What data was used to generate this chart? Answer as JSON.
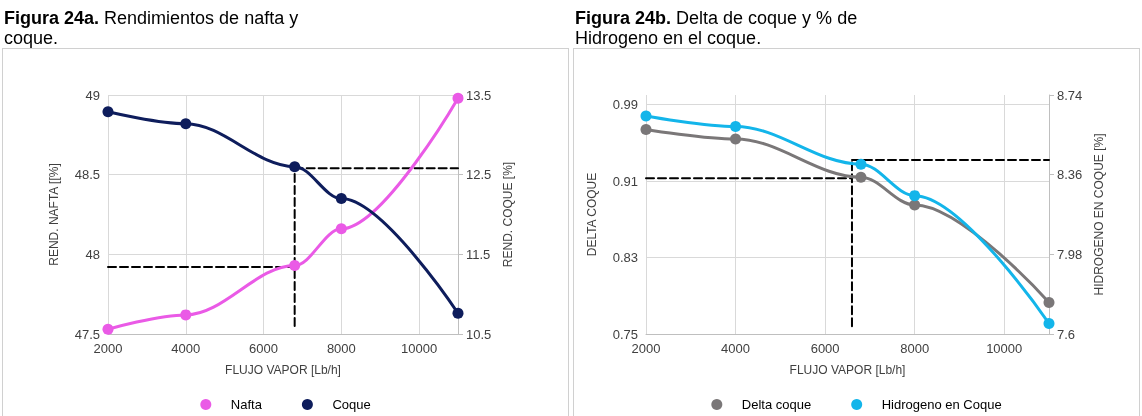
{
  "chart_data": [
    {
      "type": "line",
      "title": "Figura 24a. Rendimientos de nafta y coque.",
      "xlabel": "FLUJO VAPOR [Lb/h]",
      "ylabel": "REND. NAFTA [[%]",
      "y2label": "REND. COQUE [%]",
      "x": [
        2000,
        4000,
        6800,
        8000,
        11000
      ],
      "xlim": [
        2000,
        11000
      ],
      "xticks": [
        2000,
        4000,
        6000,
        8000,
        10000
      ],
      "ylim": [
        47.5,
        49
      ],
      "yticks": [
        47.5,
        48,
        48.5,
        49
      ],
      "y2lim": [
        10.5,
        13.5
      ],
      "y2ticks": [
        10.5,
        11.5,
        12.5,
        13.5
      ],
      "grid": true,
      "legend": "bottom",
      "marker": "circle",
      "line_style": "solid",
      "series": [
        {
          "name": "Nafta",
          "color": "#ea5ae6",
          "values": [
            47.53,
            47.62,
            47.93,
            48.16,
            48.98
          ]
        },
        {
          "name": "Coque",
          "color": "#0e1d5c",
          "axis": "y2",
          "values": [
            13.29,
            13.14,
            12.6,
            12.2,
            10.76
          ]
        },
        {
          "color": "#000000",
          "x": [
            2000,
            6800
          ],
          "values": [
            47.92,
            47.92
          ],
          "marker": "none",
          "line_style": "dashed"
        },
        {
          "color": "#000000",
          "x": [
            6800,
            6800
          ],
          "values": [
            47.55,
            48.55
          ],
          "marker": "none",
          "line_style": "dashed"
        },
        {
          "color": "#000000",
          "axis": "y2",
          "x": [
            6800,
            11000
          ],
          "values": [
            12.58,
            12.58
          ],
          "marker": "none",
          "line_style": "dashed"
        }
      ]
    },
    {
      "type": "line",
      "title": "Figura 24b. Delta de coque y % de Hidrogeno en el coque.",
      "xlabel": "FLUJO VAPOR [Lb/h]",
      "ylabel": "DELTA COQUE",
      "y2label": "HIDROGENO EN COQUE [%]",
      "x": [
        2000,
        4000,
        6800,
        8000,
        11000
      ],
      "xlim": [
        2000,
        11000
      ],
      "xticks": [
        2000,
        4000,
        6000,
        8000,
        10000
      ],
      "ylim": [
        0.75,
        1.0
      ],
      "yticks": [
        0.75,
        0.83,
        0.91,
        0.99
      ],
      "y2lim": [
        7.6,
        8.74
      ],
      "y2ticks": [
        7.6,
        7.98,
        8.36,
        8.74
      ],
      "grid": true,
      "legend": "bottom",
      "marker": "circle",
      "line_style": "solid",
      "series": [
        {
          "name": "Delta coque",
          "color": "#7a7778",
          "values": [
            0.964,
            0.954,
            0.914,
            0.885,
            0.783
          ]
        },
        {
          "name": "Hidrogeno en Coque",
          "color": "#13b5ea",
          "axis": "y2",
          "values": [
            8.64,
            8.59,
            8.41,
            8.26,
            7.65
          ]
        },
        {
          "color": "#000000",
          "x": [
            2000,
            6600
          ],
          "values": [
            0.913,
            0.913
          ],
          "marker": "none",
          "line_style": "dashed"
        },
        {
          "color": "#000000",
          "x": [
            6600,
            6600
          ],
          "values": [
            0.758,
            0.933
          ],
          "marker": "none",
          "line_style": "dashed"
        },
        {
          "color": "#000000",
          "axis": "y2",
          "x": [
            6600,
            11000
          ],
          "values": [
            8.43,
            8.43
          ],
          "marker": "none",
          "line_style": "dashed"
        }
      ]
    }
  ]
}
